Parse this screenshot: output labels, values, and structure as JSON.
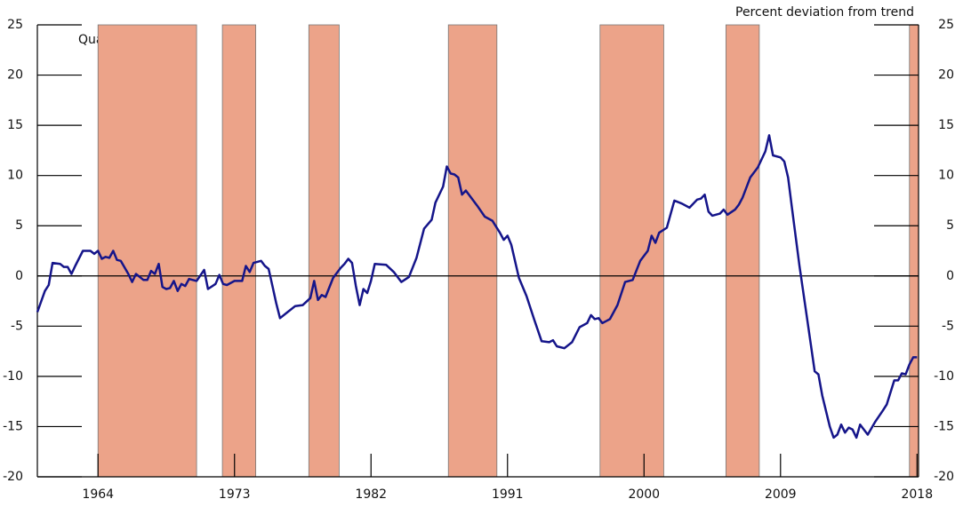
{
  "chart_data": {
    "type": "line",
    "title": "Percent deviation from trend",
    "annotation": "Quarterly",
    "color": "#15158a",
    "shade_color": "#eca389",
    "xlim": [
      1960,
      2018.1
    ],
    "xticks": [
      1964,
      1973,
      1982,
      1991,
      2000,
      2009,
      2018
    ],
    "ylim": [
      -20,
      25
    ],
    "yticks": [
      -20,
      -15,
      -10,
      -5,
      0,
      5,
      10,
      15,
      20,
      25
    ],
    "y2lim": [
      -20,
      25
    ],
    "y2ticks": [
      -20,
      -15,
      -10,
      -5,
      0,
      5,
      10,
      15,
      20,
      25
    ],
    "zero_line": true,
    "shaded_periods": [
      [
        1964,
        1970.5
      ],
      [
        1972.2,
        1974.4
      ],
      [
        1977.9,
        1979.9
      ],
      [
        1987.1,
        1990.3
      ],
      [
        1997.1,
        2001.3
      ],
      [
        2005.4,
        2007.6
      ],
      [
        2017.5,
        2018.1
      ]
    ],
    "x": [
      1960,
      1960.5,
      1960.75,
      1961,
      1961.5,
      1961.75,
      1962,
      1962.25,
      1962.5,
      1963,
      1963.5,
      1963.75,
      1964,
      1964.25,
      1964.5,
      1964.75,
      1965,
      1965.25,
      1965.5,
      1966,
      1966.25,
      1966.5,
      1967,
      1967.25,
      1967.5,
      1967.75,
      1968,
      1968.25,
      1968.5,
      1968.75,
      1969,
      1969.25,
      1969.5,
      1969.75,
      1970,
      1970.5,
      1971,
      1971.25,
      1971.75,
      1972,
      1972.25,
      1972.5,
      1973,
      1973.5,
      1973.75,
      1974,
      1974.25,
      1974.75,
      1975,
      1975.25,
      1975.5,
      1975.75,
      1976,
      1976.5,
      1977,
      1977.5,
      1978,
      1978.25,
      1978.5,
      1978.75,
      1979,
      1979.5,
      1980,
      1980.25,
      1980.5,
      1980.75,
      1981,
      1981.25,
      1981.5,
      1981.75,
      1982,
      1982.25,
      1983,
      1983.5,
      1984,
      1984.5,
      1985,
      1985.5,
      1986,
      1986.25,
      1986.75,
      1987,
      1987.25,
      1987.5,
      1987.75,
      1988,
      1988.25,
      1988.5,
      1989,
      1989.5,
      1990,
      1990.5,
      1990.75,
      1991,
      1991.25,
      1991.75,
      1992.25,
      1992.75,
      1993.25,
      1993.75,
      1994,
      1994.25,
      1994.75,
      1995.25,
      1995.75,
      1996.25,
      1996.5,
      1996.75,
      1997,
      1997.25,
      1997.5,
      1997.75,
      1998.25,
      1998.75,
      1999.25,
      1999.75,
      2000.25,
      2000.5,
      2000.75,
      2001,
      2001.5,
      2002,
      2002.5,
      2003,
      2003.5,
      2003.75,
      2004,
      2004.25,
      2004.5,
      2005,
      2005.25,
      2005.5,
      2006,
      2006.25,
      2006.5,
      2007,
      2007.5,
      2008,
      2008.25,
      2008.5,
      2009,
      2009.25,
      2009.5,
      2009.75,
      2010.25,
      2010.75,
      2011.25,
      2011.5,
      2011.75,
      2012.25,
      2012.5,
      2012.75,
      2013,
      2013.25,
      2013.5,
      2013.75,
      2014,
      2014.25,
      2014.75,
      2015.25,
      2015.75,
      2016,
      2016.5,
      2016.75,
      2017,
      2017.25,
      2017.5,
      2017.75,
      2018
    ],
    "values": [
      -3.6,
      -1.5,
      -0.9,
      1.3,
      1.2,
      0.9,
      0.9,
      0.2,
      1.0,
      2.5,
      2.5,
      2.2,
      2.5,
      1.7,
      1.9,
      1.8,
      2.5,
      1.6,
      1.5,
      0.2,
      -0.6,
      0.2,
      -0.4,
      -0.4,
      0.5,
      0.2,
      1.2,
      -1.1,
      -1.3,
      -1.2,
      -0.5,
      -1.5,
      -0.8,
      -1.0,
      -0.3,
      -0.5,
      0.6,
      -1.3,
      -0.8,
      0.1,
      -0.8,
      -0.9,
      -0.5,
      -0.5,
      1.0,
      0.4,
      1.3,
      1.5,
      1.0,
      0.7,
      -1.0,
      -2.7,
      -4.2,
      -3.6,
      -3.0,
      -2.9,
      -2.2,
      -0.5,
      -2.4,
      -1.9,
      -2.1,
      -0.2,
      0.8,
      1.2,
      1.7,
      1.3,
      -1.0,
      -2.9,
      -1.3,
      -1.7,
      -0.5,
      1.2,
      1.1,
      0.4,
      -0.6,
      -0.1,
      1.8,
      4.7,
      5.6,
      7.3,
      8.9,
      10.9,
      10.2,
      10.1,
      9.8,
      8.1,
      8.5,
      8.0,
      7.0,
      5.9,
      5.5,
      4.3,
      3.6,
      4.0,
      3.1,
      -0.2,
      -2.0,
      -4.3,
      -6.5,
      -6.6,
      -6.4,
      -7.0,
      -7.2,
      -6.6,
      -5.1,
      -4.7,
      -3.9,
      -4.3,
      -4.2,
      -4.7,
      -4.5,
      -4.3,
      -2.9,
      -0.6,
      -0.4,
      1.5,
      2.5,
      4.0,
      3.3,
      4.3,
      4.8,
      7.5,
      7.2,
      6.8,
      7.6,
      7.7,
      8.1,
      6.4,
      6.0,
      6.2,
      6.6,
      6.1,
      6.6,
      7.1,
      7.8,
      9.8,
      10.8,
      12.4,
      14.0,
      12.0,
      11.8,
      11.4,
      9.8,
      6.8,
      1.0,
      -4.2,
      -9.5,
      -9.8,
      -11.9,
      -15.0,
      -16.1,
      -15.8,
      -14.8,
      -15.6,
      -15.1,
      -15.3,
      -16.1,
      -14.8,
      -15.8,
      -14.5,
      -13.4,
      -12.8,
      -10.4,
      -10.4,
      -9.7,
      -9.8,
      -8.8,
      -8.1,
      -8.1
    ]
  }
}
